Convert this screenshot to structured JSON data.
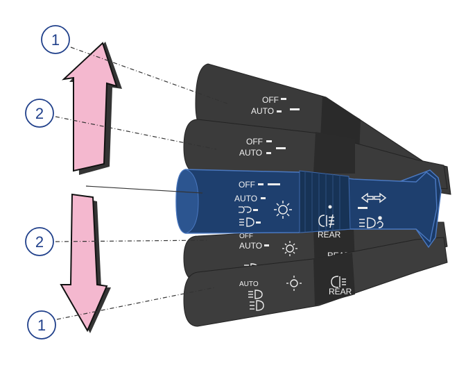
{
  "callouts": {
    "top": "1",
    "upper": "2",
    "lower": "2",
    "bottom": "1"
  },
  "stalk": {
    "off": "OFF",
    "auto": "AUTO",
    "rear": "REAR"
  },
  "colors": {
    "active_stalk": "#1e3f6e",
    "ghost_stalk": "#3a3a3a",
    "arrow_fill": "#f4b8cf",
    "callout_stroke": "#1f3f8a"
  },
  "icons": [
    "low-beam-icon",
    "sun-icon",
    "rear-fog-icon",
    "turn-signal-icon",
    "auto-high-beam-icon"
  ]
}
